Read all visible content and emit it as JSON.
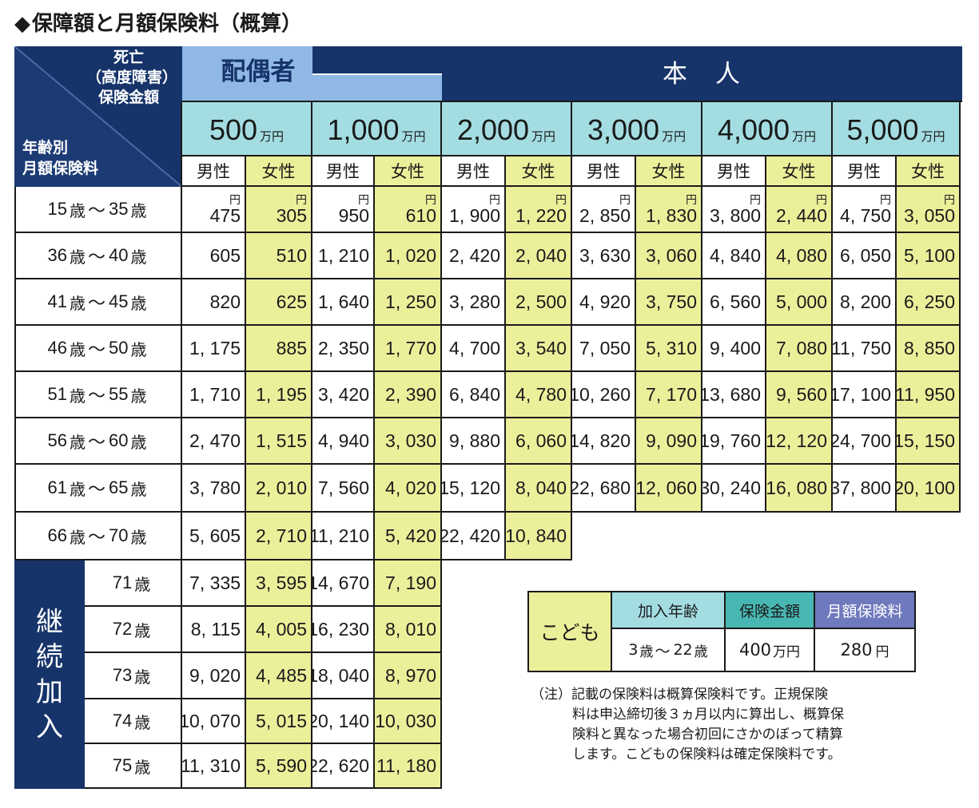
{
  "title": "保障額と月額保険料（概算）",
  "title_marker": "◆",
  "corner": {
    "top_label_1": "死亡",
    "top_label_2": "（高度障害）",
    "top_label_3": "保険金額",
    "bottom_label_1": "年齢別",
    "bottom_label_2": "月額保険料"
  },
  "groups": {
    "spouse": "配偶者",
    "self": "本　人"
  },
  "amounts": [
    {
      "value": "500",
      "unit": "万円"
    },
    {
      "value": "1,000",
      "unit": "万円"
    },
    {
      "value": "2,000",
      "unit": "万円"
    },
    {
      "value": "3,000",
      "unit": "万円"
    },
    {
      "value": "4,000",
      "unit": "万円"
    },
    {
      "value": "5,000",
      "unit": "万円"
    }
  ],
  "gender": {
    "male": "男性",
    "female": "女性"
  },
  "yen_marker": "円",
  "age_unit": "歳",
  "tilde": "〜",
  "rows": [
    {
      "from": "15",
      "to": "35",
      "values": [
        "475",
        "305",
        "950",
        "610",
        "1, 900",
        "1, 220",
        "2, 850",
        "1, 830",
        "3, 800",
        "2, 440",
        "4, 750",
        "3, 050"
      ]
    },
    {
      "from": "36",
      "to": "40",
      "values": [
        "605",
        "510",
        "1, 210",
        "1, 020",
        "2, 420",
        "2, 040",
        "3, 630",
        "3, 060",
        "4, 840",
        "4, 080",
        "6, 050",
        "5, 100"
      ]
    },
    {
      "from": "41",
      "to": "45",
      "values": [
        "820",
        "625",
        "1, 640",
        "1, 250",
        "3, 280",
        "2, 500",
        "4, 920",
        "3, 750",
        "6, 560",
        "5, 000",
        "8, 200",
        "6, 250"
      ]
    },
    {
      "from": "46",
      "to": "50",
      "values": [
        "1, 175",
        "885",
        "2, 350",
        "1, 770",
        "4, 700",
        "3, 540",
        "7, 050",
        "5, 310",
        "9, 400",
        "7, 080",
        "11, 750",
        "8, 850"
      ]
    },
    {
      "from": "51",
      "to": "55",
      "values": [
        "1, 710",
        "1, 195",
        "3, 420",
        "2, 390",
        "6, 840",
        "4, 780",
        "10, 260",
        "7, 170",
        "13, 680",
        "9, 560",
        "17, 100",
        "11, 950"
      ]
    },
    {
      "from": "56",
      "to": "60",
      "values": [
        "2, 470",
        "1, 515",
        "4, 940",
        "3, 030",
        "9, 880",
        "6, 060",
        "14, 820",
        "9, 090",
        "19, 760",
        "12, 120",
        "24, 700",
        "15, 150"
      ]
    },
    {
      "from": "61",
      "to": "65",
      "values": [
        "3, 780",
        "2, 010",
        "7, 560",
        "4, 020",
        "15, 120",
        "8, 040",
        "22, 680",
        "12, 060",
        "30, 240",
        "16, 080",
        "37, 800",
        "20, 100"
      ]
    },
    {
      "from": "66",
      "to": "70",
      "values": [
        "5, 605",
        "2, 710",
        "11, 210",
        "5, 420",
        "22, 420",
        "10, 840"
      ]
    }
  ],
  "continuation": {
    "label_chars": [
      "継",
      "続",
      "加",
      "入"
    ],
    "rows": [
      {
        "age": "71",
        "values": [
          "7, 335",
          "3, 595",
          "14, 670",
          "7, 190"
        ]
      },
      {
        "age": "72",
        "values": [
          "8, 115",
          "4, 005",
          "16, 230",
          "8, 010"
        ]
      },
      {
        "age": "73",
        "values": [
          "9, 020",
          "4, 485",
          "18, 040",
          "8, 970"
        ]
      },
      {
        "age": "74",
        "values": [
          "10, 070",
          "5, 015",
          "20, 140",
          "10, 030"
        ]
      },
      {
        "age": "75",
        "values": [
          "11, 310",
          "5, 590",
          "22, 620",
          "11, 180"
        ]
      }
    ]
  },
  "child": {
    "label": "こども",
    "headers": [
      "加入年齢",
      "保険金額",
      "月額保険料"
    ],
    "age_from": "3",
    "age_to": "22",
    "amount_value": "400",
    "amount_unit": "万円",
    "premium_value": "280",
    "premium_unit": "円"
  },
  "notes": {
    "prefix": "（注）",
    "line1": "記載の保険料は概算保険料です。正規保険",
    "line2": "料は申込締切後３ヵ月以内に算出し、概算保",
    "line3": "険料と異なった場合初回にさかのぼって精算",
    "line4": "します。こどもの保険料は確定保険料です。"
  },
  "colors": {
    "navy": "#16346a",
    "light_blue": "#a3dde2",
    "spouse_blue": "#8fb8e5",
    "yellow": "#ecef9a",
    "teal": "#48b7b3",
    "purple": "#6f79bd"
  }
}
